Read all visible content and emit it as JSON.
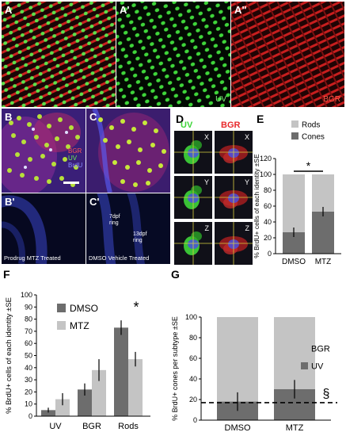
{
  "panels": {
    "A": {
      "letter": "A"
    },
    "A1": {
      "letter": "A'",
      "label": "UV",
      "label_color": "#7ef07a"
    },
    "A2": {
      "letter": "A\"",
      "label": "BGR",
      "label_color": "#ff5a4a"
    },
    "B": {
      "letter": "B",
      "legend": [
        "BGR",
        "UV",
        "BrdU"
      ]
    },
    "C": {
      "letter": "C"
    },
    "B1": {
      "letter": "B'",
      "caption": "Prodrug MTZ Treated"
    },
    "C1": {
      "letter": "C'",
      "caption": "DMSO Vehicle Treated",
      "ring1": "7dpf ring",
      "ring2": "13dpf ring"
    },
    "D": {
      "letter": "D",
      "uv_label": "UV",
      "bgr_label": "BGR",
      "axes": [
        "X",
        "Y",
        "Z"
      ]
    },
    "E": {
      "letter": "E"
    },
    "F": {
      "letter": "F"
    },
    "G": {
      "letter": "G"
    }
  },
  "colors": {
    "dark_bar": "#6d6d6d",
    "light_bar": "#c4c4c4",
    "uv_green": "#3fd63a",
    "bgr_red": "#e8282a",
    "brdu_blue": "#4a50e0"
  },
  "chart_data": [
    {
      "id": "E",
      "type": "bar",
      "stacked": true,
      "categories": [
        "DMSO",
        "MTZ"
      ],
      "series": [
        {
          "name": "Cones",
          "values": [
            27,
            53
          ],
          "errors": [
            6,
            6
          ]
        },
        {
          "name": "Rods",
          "values": [
            73,
            47
          ]
        }
      ],
      "ylabel": "% BrdU+ cells of each identity ±SE",
      "ylim": [
        0,
        120
      ],
      "yticks": [
        0,
        20,
        40,
        60,
        80,
        100,
        120
      ],
      "annotation": "*"
    },
    {
      "id": "F",
      "type": "bar",
      "categories": [
        "UV",
        "BGR",
        "Rods"
      ],
      "series": [
        {
          "name": "DMSO",
          "values": [
            5,
            22,
            73
          ],
          "errors": [
            2,
            5,
            6
          ]
        },
        {
          "name": "MTZ",
          "values": [
            14,
            38,
            47
          ],
          "errors": [
            5,
            9,
            6
          ]
        }
      ],
      "ylabel": "% BrdU+ cells of each identity ±SE",
      "ylim": [
        0,
        100
      ],
      "yticks": [
        0,
        10,
        20,
        30,
        40,
        50,
        60,
        70,
        80,
        90,
        100
      ],
      "annotation": "*"
    },
    {
      "id": "G",
      "type": "bar",
      "stacked": true,
      "categories": [
        "DMSO",
        "MTZ"
      ],
      "series": [
        {
          "name": "UV",
          "values": [
            18,
            30
          ],
          "errors": [
            9,
            9
          ]
        },
        {
          "name": "BGR",
          "values": [
            82,
            70
          ]
        }
      ],
      "ylabel": "% BrdU+ cones per subtype ±SE",
      "ylim": [
        0,
        100
      ],
      "yticks": [
        0,
        20,
        40,
        60,
        80,
        100
      ],
      "reference_line": 17,
      "annotation": "§"
    }
  ]
}
